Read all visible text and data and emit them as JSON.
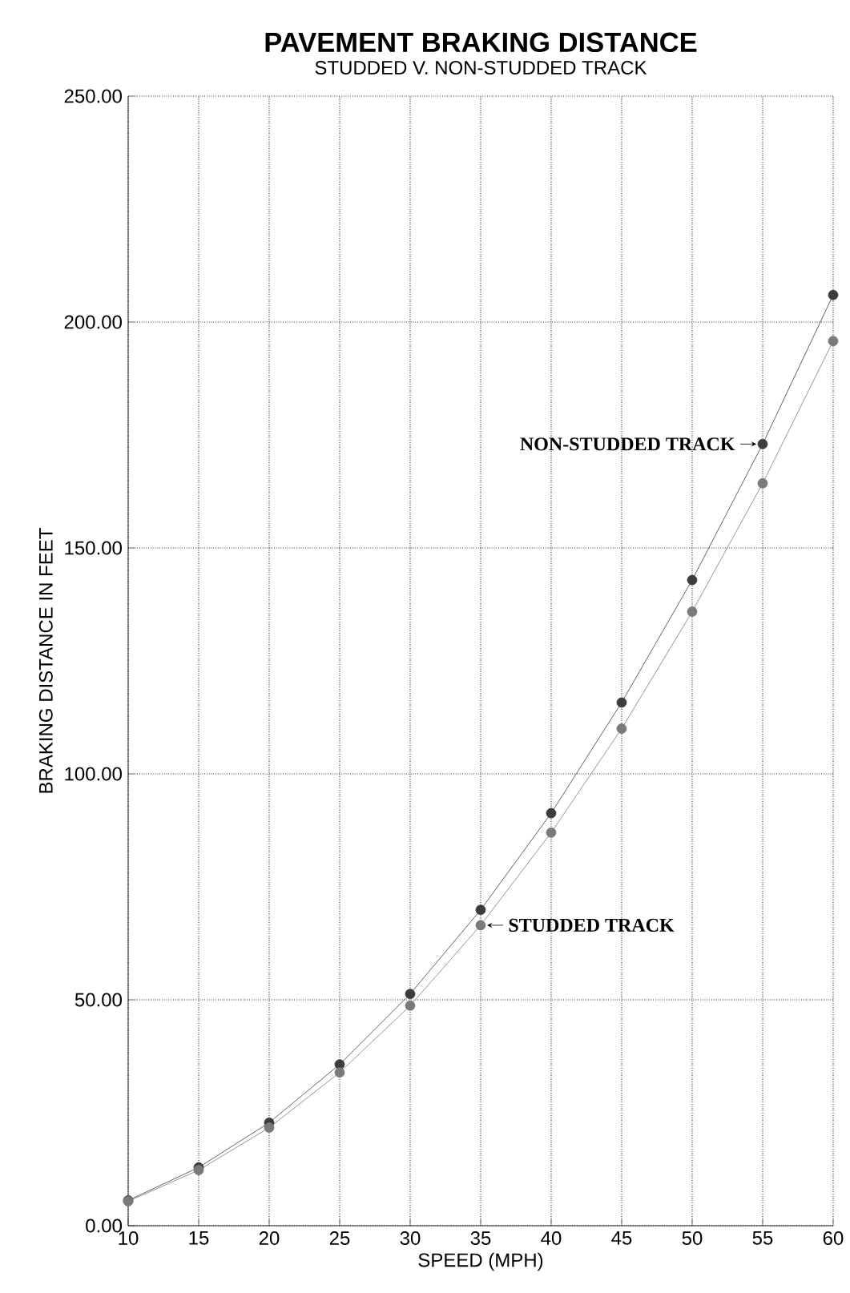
{
  "chart_data": {
    "type": "line",
    "title": "PAVEMENT BRAKING DISTANCE",
    "subtitle": "STUDDED V. NON-STUDDED TRACK",
    "xlabel": "SPEED (MPH)",
    "ylabel": "BRAKING DISTANCE IN FEET",
    "x": [
      10,
      15,
      20,
      25,
      30,
      35,
      40,
      45,
      50,
      55,
      60
    ],
    "series": [
      {
        "color": "#3c3c3c",
        "values": [
          5.6,
          12.9,
          22.8,
          35.7,
          51.3,
          69.9,
          91.3,
          115.8,
          142.9,
          173,
          206
        ]
      },
      {
        "color": "#7a7a7a",
        "values": [
          5.4,
          12.3,
          21.7,
          33.9,
          48.7,
          66.5,
          87,
          110,
          135.9,
          164.3,
          195.8
        ]
      }
    ],
    "annotations": [
      {
        "text": "NON-STUDDED TRACK",
        "x": 55,
        "y": 173
      },
      {
        "text": "STUDDED TRACK",
        "x": 35,
        "y": 66.5
      }
    ],
    "xlim": [
      10,
      60
    ],
    "xticks": [
      10,
      15,
      20,
      25,
      30,
      35,
      40,
      45,
      50,
      55,
      60
    ],
    "ylim": [
      0,
      250
    ],
    "yticks": [
      {
        "value": 0,
        "label": "0.00"
      },
      {
        "value": 50,
        "label": "50.00"
      },
      {
        "value": 100,
        "label": "100.00"
      },
      {
        "value": 150,
        "label": "150.00"
      },
      {
        "value": 200,
        "label": "200.00"
      },
      {
        "value": 250,
        "label": "250.00"
      }
    ],
    "grid": true,
    "marker": "circle",
    "line_style": "solid"
  }
}
